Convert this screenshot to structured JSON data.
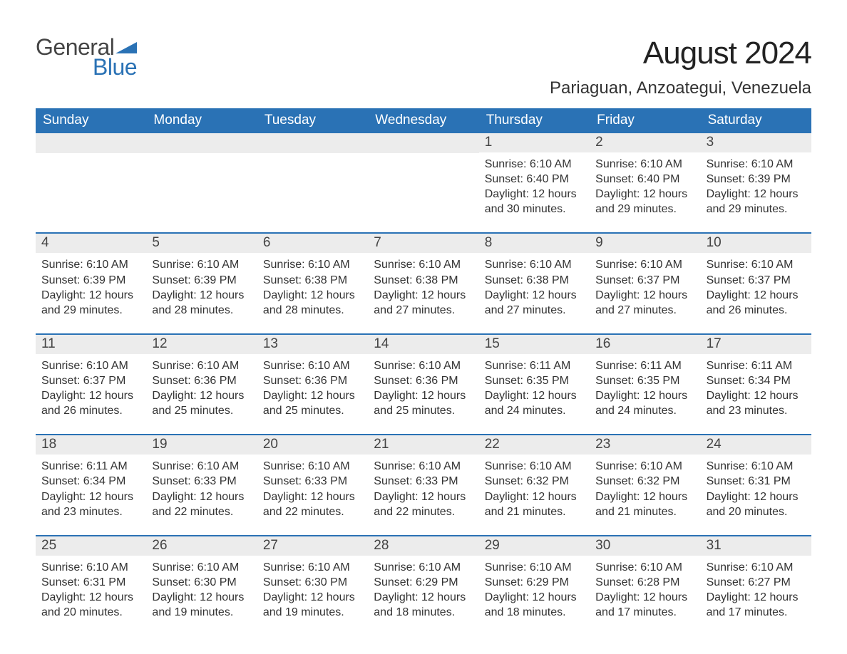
{
  "logo": {
    "general": "General",
    "blue": "Blue",
    "arrow_color": "#2a72b5"
  },
  "title": "August 2024",
  "location": "Pariaguan, Anzoategui, Venezuela",
  "colors": {
    "header_bg": "#2a72b5",
    "header_text": "#ffffff",
    "daynum_bg": "#ececec",
    "text": "#333333",
    "border": "#2a72b5",
    "page_bg": "#ffffff"
  },
  "weekdays": [
    "Sunday",
    "Monday",
    "Tuesday",
    "Wednesday",
    "Thursday",
    "Friday",
    "Saturday"
  ],
  "weeks": [
    [
      null,
      null,
      null,
      null,
      {
        "n": "1",
        "sunrise": "6:10 AM",
        "sunset": "6:40 PM",
        "dlh": "12",
        "dlm": "30"
      },
      {
        "n": "2",
        "sunrise": "6:10 AM",
        "sunset": "6:40 PM",
        "dlh": "12",
        "dlm": "29"
      },
      {
        "n": "3",
        "sunrise": "6:10 AM",
        "sunset": "6:39 PM",
        "dlh": "12",
        "dlm": "29"
      }
    ],
    [
      {
        "n": "4",
        "sunrise": "6:10 AM",
        "sunset": "6:39 PM",
        "dlh": "12",
        "dlm": "29"
      },
      {
        "n": "5",
        "sunrise": "6:10 AM",
        "sunset": "6:39 PM",
        "dlh": "12",
        "dlm": "28"
      },
      {
        "n": "6",
        "sunrise": "6:10 AM",
        "sunset": "6:38 PM",
        "dlh": "12",
        "dlm": "28"
      },
      {
        "n": "7",
        "sunrise": "6:10 AM",
        "sunset": "6:38 PM",
        "dlh": "12",
        "dlm": "27"
      },
      {
        "n": "8",
        "sunrise": "6:10 AM",
        "sunset": "6:38 PM",
        "dlh": "12",
        "dlm": "27"
      },
      {
        "n": "9",
        "sunrise": "6:10 AM",
        "sunset": "6:37 PM",
        "dlh": "12",
        "dlm": "27"
      },
      {
        "n": "10",
        "sunrise": "6:10 AM",
        "sunset": "6:37 PM",
        "dlh": "12",
        "dlm": "26"
      }
    ],
    [
      {
        "n": "11",
        "sunrise": "6:10 AM",
        "sunset": "6:37 PM",
        "dlh": "12",
        "dlm": "26"
      },
      {
        "n": "12",
        "sunrise": "6:10 AM",
        "sunset": "6:36 PM",
        "dlh": "12",
        "dlm": "25"
      },
      {
        "n": "13",
        "sunrise": "6:10 AM",
        "sunset": "6:36 PM",
        "dlh": "12",
        "dlm": "25"
      },
      {
        "n": "14",
        "sunrise": "6:10 AM",
        "sunset": "6:36 PM",
        "dlh": "12",
        "dlm": "25"
      },
      {
        "n": "15",
        "sunrise": "6:11 AM",
        "sunset": "6:35 PM",
        "dlh": "12",
        "dlm": "24"
      },
      {
        "n": "16",
        "sunrise": "6:11 AM",
        "sunset": "6:35 PM",
        "dlh": "12",
        "dlm": "24"
      },
      {
        "n": "17",
        "sunrise": "6:11 AM",
        "sunset": "6:34 PM",
        "dlh": "12",
        "dlm": "23"
      }
    ],
    [
      {
        "n": "18",
        "sunrise": "6:11 AM",
        "sunset": "6:34 PM",
        "dlh": "12",
        "dlm": "23"
      },
      {
        "n": "19",
        "sunrise": "6:10 AM",
        "sunset": "6:33 PM",
        "dlh": "12",
        "dlm": "22"
      },
      {
        "n": "20",
        "sunrise": "6:10 AM",
        "sunset": "6:33 PM",
        "dlh": "12",
        "dlm": "22"
      },
      {
        "n": "21",
        "sunrise": "6:10 AM",
        "sunset": "6:33 PM",
        "dlh": "12",
        "dlm": "22"
      },
      {
        "n": "22",
        "sunrise": "6:10 AM",
        "sunset": "6:32 PM",
        "dlh": "12",
        "dlm": "21"
      },
      {
        "n": "23",
        "sunrise": "6:10 AM",
        "sunset": "6:32 PM",
        "dlh": "12",
        "dlm": "21"
      },
      {
        "n": "24",
        "sunrise": "6:10 AM",
        "sunset": "6:31 PM",
        "dlh": "12",
        "dlm": "20"
      }
    ],
    [
      {
        "n": "25",
        "sunrise": "6:10 AM",
        "sunset": "6:31 PM",
        "dlh": "12",
        "dlm": "20"
      },
      {
        "n": "26",
        "sunrise": "6:10 AM",
        "sunset": "6:30 PM",
        "dlh": "12",
        "dlm": "19"
      },
      {
        "n": "27",
        "sunrise": "6:10 AM",
        "sunset": "6:30 PM",
        "dlh": "12",
        "dlm": "19"
      },
      {
        "n": "28",
        "sunrise": "6:10 AM",
        "sunset": "6:29 PM",
        "dlh": "12",
        "dlm": "18"
      },
      {
        "n": "29",
        "sunrise": "6:10 AM",
        "sunset": "6:29 PM",
        "dlh": "12",
        "dlm": "18"
      },
      {
        "n": "30",
        "sunrise": "6:10 AM",
        "sunset": "6:28 PM",
        "dlh": "12",
        "dlm": "17"
      },
      {
        "n": "31",
        "sunrise": "6:10 AM",
        "sunset": "6:27 PM",
        "dlh": "12",
        "dlm": "17"
      }
    ]
  ],
  "labels": {
    "sunrise": "Sunrise:",
    "sunset": "Sunset:",
    "daylight_prefix": "Daylight:",
    "hours_word": "hours",
    "and_word": "and",
    "minutes_word": "minutes."
  }
}
